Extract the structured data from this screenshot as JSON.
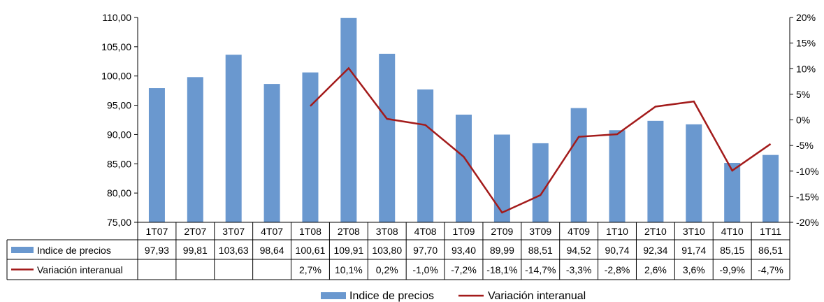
{
  "chart_data": {
    "type": "bar",
    "categories": [
      "1T07",
      "2T07",
      "3T07",
      "4T07",
      "1T08",
      "2T08",
      "3T08",
      "4T08",
      "1T09",
      "2T09",
      "3T09",
      "4T09",
      "1T10",
      "2T10",
      "3T10",
      "4T10",
      "1T11"
    ],
    "series": [
      {
        "name": "Indice de precios",
        "type": "bar",
        "axis": "left",
        "color": "#6a98cf",
        "values": [
          97.93,
          99.81,
          103.63,
          98.64,
          100.61,
          109.91,
          103.8,
          97.7,
          93.4,
          89.99,
          88.51,
          94.52,
          90.74,
          92.34,
          91.74,
          85.15,
          86.51
        ],
        "labels": [
          "97,93",
          "99,81",
          "103,63",
          "98,64",
          "100,61",
          "109,91",
          "103,80",
          "97,70",
          "93,40",
          "89,99",
          "88,51",
          "94,52",
          "90,74",
          "92,34",
          "91,74",
          "85,15",
          "86,51"
        ]
      },
      {
        "name": "Variación interanual",
        "type": "line",
        "axis": "right",
        "color": "#a31b1b",
        "values": [
          null,
          null,
          null,
          null,
          2.7,
          10.1,
          0.2,
          -1.0,
          -7.2,
          -18.1,
          -14.7,
          -3.3,
          -2.8,
          2.6,
          3.6,
          -9.9,
          -4.7
        ],
        "labels": [
          "",
          "",
          "",
          "",
          "2,7%",
          "10,1%",
          "0,2%",
          "-1,0%",
          "-7,2%",
          "-18,1%",
          "-14,7%",
          "-3,3%",
          "-2,8%",
          "2,6%",
          "3,6%",
          "-9,9%",
          "-4,7%"
        ]
      }
    ],
    "left_axis": {
      "ylim": [
        75,
        110
      ],
      "ticks": [
        110,
        105,
        100,
        95,
        90,
        85,
        80,
        75
      ],
      "tick_labels": [
        "110,00",
        "105,00",
        "100,00",
        "95,00",
        "90,00",
        "85,00",
        "80,00",
        "75,00"
      ]
    },
    "right_axis": {
      "ylim": [
        -20,
        20
      ],
      "ticks": [
        20,
        15,
        10,
        5,
        0,
        -5,
        -10,
        -15,
        -20
      ],
      "tick_labels": [
        "20%",
        "15%",
        "10%",
        "5%",
        "0%",
        "-5%",
        "-10%",
        "-15%",
        "-20%"
      ]
    },
    "data_table": true,
    "legend_position": "bottom",
    "grid": false,
    "title": "",
    "xlabel": "",
    "ylabel": ""
  }
}
